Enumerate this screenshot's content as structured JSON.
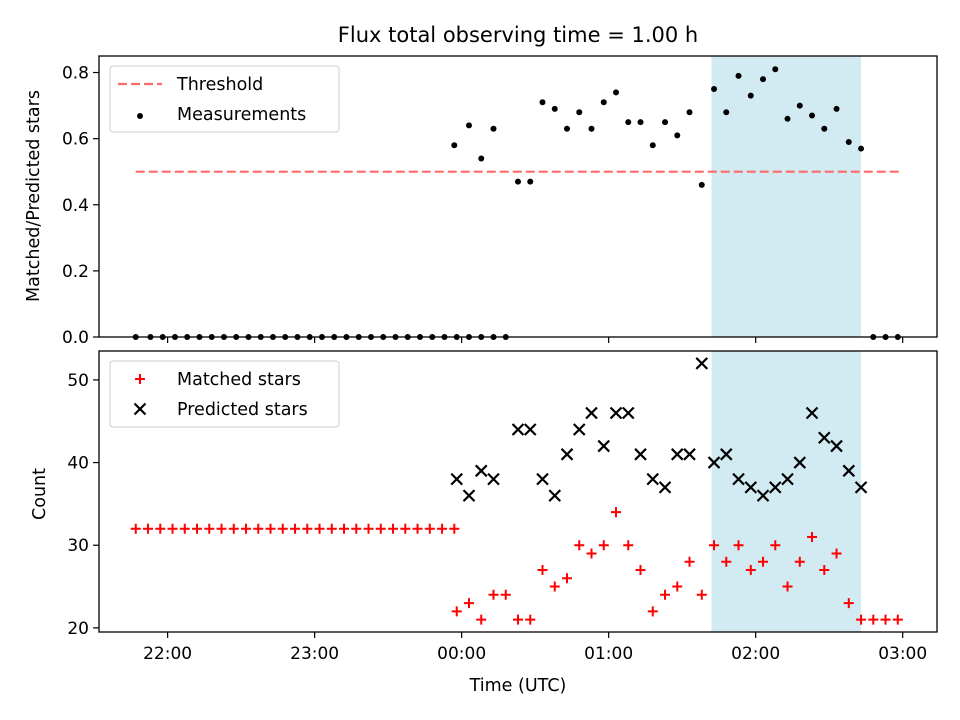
{
  "figure": {
    "title": "Flux total observing time = 1.00 h",
    "xlabel": "Time (UTC)"
  },
  "chart_data": [
    {
      "type": "scatter",
      "panel": "top",
      "ylabel": "Matched/Predicted stars",
      "xlim": [
        "21:32",
        "03:14"
      ],
      "ylim": [
        0,
        0.85
      ],
      "yticks": [
        0.0,
        0.2,
        0.4,
        0.6,
        0.8
      ],
      "ytick_labels": [
        "0.0",
        "0.2",
        "0.4",
        "0.6",
        "0.8"
      ],
      "legend_placement": "upper-left",
      "shaded_region": {
        "x_start": "01:42",
        "x_end": "02:43",
        "color": "#add8e6"
      },
      "threshold": {
        "name": "Threshold",
        "y": 0.5,
        "x_start": "21:47",
        "x_end": "03:00",
        "color": "#ff6b6b",
        "style": "dashed"
      },
      "series": [
        {
          "name": "Measurements",
          "marker": "dot",
          "color": "#000000",
          "x": [
            "21:47",
            "21:53",
            "21:58",
            "22:03",
            "22:08",
            "22:13",
            "22:18",
            "22:23",
            "22:28",
            "22:33",
            "22:38",
            "22:43",
            "22:48",
            "22:53",
            "22:58",
            "23:03",
            "23:08",
            "23:13",
            "23:18",
            "23:23",
            "23:28",
            "23:33",
            "23:38",
            "23:43",
            "23:48",
            "23:53",
            "23:58",
            "00:03",
            "00:08",
            "00:13",
            "23:57",
            "00:03",
            "00:08",
            "00:13",
            "00:18",
            "00:23",
            "00:28",
            "00:33",
            "00:38",
            "00:43",
            "00:48",
            "00:53",
            "00:58",
            "01:03",
            "01:08",
            "01:13",
            "01:18",
            "01:23",
            "01:28",
            "01:33",
            "01:38",
            "01:43",
            "01:48",
            "01:53",
            "01:58",
            "02:03",
            "02:08",
            "02:13",
            "02:18",
            "02:23",
            "02:28",
            "02:33",
            "02:38",
            "02:43",
            "02:48",
            "02:53",
            "02:58"
          ],
          "y": [
            0,
            0,
            0,
            0,
            0,
            0,
            0,
            0,
            0,
            0,
            0,
            0,
            0,
            0,
            0,
            0,
            0,
            0,
            0,
            0,
            0,
            0,
            0,
            0,
            0,
            0,
            0,
            0,
            0,
            0,
            0.58,
            0.64,
            0.54,
            0.63,
            0,
            0.47,
            0.47,
            0.71,
            0.69,
            0.63,
            0.68,
            0.63,
            0.71,
            0.74,
            0.65,
            0.65,
            0.58,
            0.65,
            0.61,
            0.68,
            0.46,
            0.75,
            0.68,
            0.79,
            0.73,
            0.78,
            0.81,
            0.66,
            0.7,
            0.67,
            0.63,
            0.69,
            0.59,
            0.57,
            0,
            0,
            0
          ]
        }
      ]
    },
    {
      "type": "scatter",
      "panel": "bottom",
      "ylabel": "Count",
      "xlim": [
        "21:32",
        "03:14"
      ],
      "ylim": [
        19.5,
        53.5
      ],
      "yticks": [
        20,
        30,
        40,
        50
      ],
      "ytick_labels": [
        "20",
        "30",
        "40",
        "50"
      ],
      "xtick_labels": [
        "22:00",
        "23:00",
        "00:00",
        "01:00",
        "02:00",
        "03:00"
      ],
      "legend_placement": "upper-left",
      "shaded_region": {
        "x_start": "01:42",
        "x_end": "02:43",
        "color": "#add8e6"
      },
      "series": [
        {
          "name": "Matched stars",
          "marker": "plus",
          "color": "#ff0000",
          "x": [
            "21:47",
            "21:52",
            "21:57",
            "22:02",
            "22:07",
            "22:12",
            "22:17",
            "22:22",
            "22:27",
            "22:32",
            "22:37",
            "22:42",
            "22:47",
            "22:52",
            "22:57",
            "23:02",
            "23:07",
            "23:12",
            "23:17",
            "23:22",
            "23:27",
            "23:32",
            "23:37",
            "23:42",
            "23:47",
            "23:52",
            "23:57",
            "23:58",
            "00:03",
            "00:08",
            "00:13",
            "00:18",
            "00:23",
            "00:28",
            "00:33",
            "00:38",
            "00:43",
            "00:48",
            "00:53",
            "00:58",
            "01:03",
            "01:08",
            "01:13",
            "01:18",
            "01:23",
            "01:28",
            "01:33",
            "01:38",
            "01:43",
            "01:48",
            "01:53",
            "01:58",
            "02:03",
            "02:08",
            "02:13",
            "02:18",
            "02:23",
            "02:28",
            "02:33",
            "02:38",
            "02:43",
            "02:48",
            "02:53",
            "02:58"
          ],
          "y": [
            32,
            32,
            32,
            32,
            32,
            32,
            32,
            32,
            32,
            32,
            32,
            32,
            32,
            32,
            32,
            32,
            32,
            32,
            32,
            32,
            32,
            32,
            32,
            32,
            32,
            32,
            32,
            22,
            23,
            21,
            24,
            24,
            21,
            21,
            27,
            25,
            26,
            30,
            29,
            30,
            34,
            30,
            27,
            22,
            24,
            25,
            28,
            24,
            30,
            28,
            30,
            27,
            28,
            30,
            25,
            28,
            31,
            27,
            29,
            23,
            21,
            21,
            21,
            21
          ]
        },
        {
          "name": "Predicted stars",
          "marker": "x",
          "color": "#000000",
          "x": [
            "23:58",
            "00:03",
            "00:08",
            "00:13",
            "00:23",
            "00:28",
            "00:33",
            "00:38",
            "00:43",
            "00:48",
            "00:53",
            "00:58",
            "01:03",
            "01:08",
            "01:13",
            "01:18",
            "01:23",
            "01:28",
            "01:33",
            "01:38",
            "01:43",
            "01:48",
            "01:53",
            "01:58",
            "02:03",
            "02:08",
            "02:13",
            "02:18",
            "02:23",
            "02:28",
            "02:33",
            "02:38",
            "02:43"
          ],
          "y": [
            38,
            36,
            39,
            38,
            44,
            44,
            38,
            36,
            41,
            44,
            46,
            42,
            46,
            46,
            41,
            38,
            37,
            41,
            41,
            52,
            40,
            41,
            38,
            37,
            36,
            37,
            38,
            40,
            46,
            43,
            42,
            39,
            37
          ]
        }
      ]
    }
  ]
}
